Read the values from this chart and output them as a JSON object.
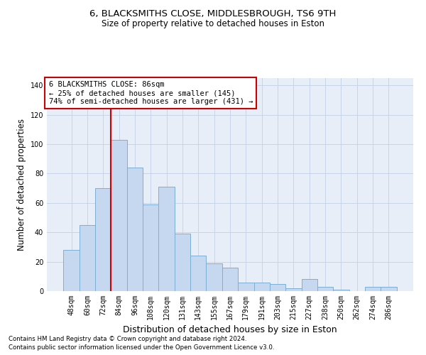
{
  "title1": "6, BLACKSMITHS CLOSE, MIDDLESBROUGH, TS6 9TH",
  "title2": "Size of property relative to detached houses in Eston",
  "xlabel": "Distribution of detached houses by size in Eston",
  "ylabel": "Number of detached properties",
  "categories": [
    "48sqm",
    "60sqm",
    "72sqm",
    "84sqm",
    "96sqm",
    "108sqm",
    "120sqm",
    "131sqm",
    "143sqm",
    "155sqm",
    "167sqm",
    "179sqm",
    "191sqm",
    "203sqm",
    "215sqm",
    "227sqm",
    "238sqm",
    "250sqm",
    "262sqm",
    "274sqm",
    "286sqm"
  ],
  "values": [
    28,
    45,
    70,
    103,
    84,
    59,
    71,
    39,
    24,
    19,
    16,
    6,
    6,
    5,
    2,
    8,
    3,
    1,
    0,
    3,
    3
  ],
  "bar_color": "#c5d8ef",
  "bar_edge_color": "#7bafd4",
  "bar_linewidth": 0.7,
  "grid_color": "#c8d4e8",
  "bg_color": "#e8eef8",
  "ylim": [
    0,
    145
  ],
  "yticks": [
    0,
    20,
    40,
    60,
    80,
    100,
    120,
    140
  ],
  "vline_index": 3,
  "annotation_line1": "6 BLACKSMITHS CLOSE: 86sqm",
  "annotation_line2": "← 25% of detached houses are smaller (145)",
  "annotation_line3": "74% of semi-detached houses are larger (431) →",
  "annotation_box_color": "#ffffff",
  "annotation_border_color": "#cc0000",
  "vline_color": "#cc0000",
  "footer1": "Contains HM Land Registry data © Crown copyright and database right 2024.",
  "footer2": "Contains public sector information licensed under the Open Government Licence v3.0."
}
